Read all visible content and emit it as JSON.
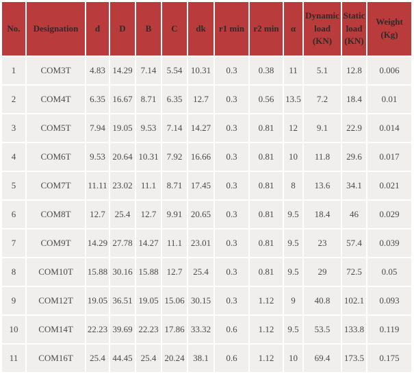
{
  "colors": {
    "header_bg": "#b93b3b",
    "header_text": "#2e2b29",
    "cell_bg": "#f0efee",
    "cell_text": "#4b4845",
    "gap": "#ffffff"
  },
  "table": {
    "columns": [
      {
        "key": "no",
        "label": "No."
      },
      {
        "key": "desig",
        "label": "Designation"
      },
      {
        "key": "d",
        "label": "d"
      },
      {
        "key": "D",
        "label": "D"
      },
      {
        "key": "B",
        "label": "B"
      },
      {
        "key": "C",
        "label": "C"
      },
      {
        "key": "dk",
        "label": "dk"
      },
      {
        "key": "r1min",
        "label": "r1 min"
      },
      {
        "key": "r2min",
        "label": "r2 min"
      },
      {
        "key": "alpha",
        "label": "α"
      },
      {
        "key": "dynamic",
        "label": "Dynamic load (KN)"
      },
      {
        "key": "static",
        "label": "Static load (KN)"
      },
      {
        "key": "weight",
        "label": "Weight (Kg)"
      }
    ],
    "rows": [
      [
        "1",
        "COM3T",
        "4.83",
        "14.29",
        "7.14",
        "5.54",
        "10.31",
        "0.3",
        "0.38",
        "11",
        "5.1",
        "12.8",
        "0.006"
      ],
      [
        "2",
        "COM4T",
        "6.35",
        "16.67",
        "8.71",
        "6.35",
        "12.7",
        "0.3",
        "0.56",
        "13.5",
        "7.2",
        "18.4",
        "0.01"
      ],
      [
        "3",
        "COM5T",
        "7.94",
        "19.05",
        "9.53",
        "7.14",
        "14.27",
        "0.3",
        "0.81",
        "12",
        "9.1",
        "22.9",
        "0.014"
      ],
      [
        "4",
        "COM6T",
        "9.53",
        "20.64",
        "10.31",
        "7.92",
        "16.66",
        "0.3",
        "0.81",
        "10",
        "11.8",
        "29.6",
        "0.017"
      ],
      [
        "5",
        "COM7T",
        "11.11",
        "23.02",
        "11.1",
        "8.71",
        "17.45",
        "0.3",
        "0.81",
        "8",
        "13.6",
        "34.1",
        "0.021"
      ],
      [
        "6",
        "COM8T",
        "12.7",
        "25.4",
        "12.7",
        "9.91",
        "20.65",
        "0.3",
        "0.81",
        "9.5",
        "18.4",
        "46",
        "0.029"
      ],
      [
        "7",
        "COM9T",
        "14.29",
        "27.78",
        "14.27",
        "11.1",
        "23.01",
        "0.3",
        "0.81",
        "9.5",
        "23",
        "57.4",
        "0.039"
      ],
      [
        "8",
        "COM10T",
        "15.88",
        "30.16",
        "15.88",
        "12.7",
        "25.4",
        "0.3",
        "0.81",
        "9.5",
        "29",
        "72.5",
        "0.05"
      ],
      [
        "9",
        "COM12T",
        "19.05",
        "36.51",
        "19.05",
        "15.06",
        "30.15",
        "0.3",
        "1.12",
        "9",
        "40.8",
        "102.1",
        "0.093"
      ],
      [
        "10",
        "COM14T",
        "22.23",
        "39.69",
        "22.23",
        "17.86",
        "33.32",
        "0.6",
        "1.12",
        "9.5",
        "53.5",
        "133.8",
        "0.119"
      ],
      [
        "11",
        "COM16T",
        "25.4",
        "44.45",
        "25.4",
        "20.24",
        "38.1",
        "0.6",
        "1.12",
        "10",
        "69.4",
        "173.5",
        "0.175"
      ]
    ]
  }
}
